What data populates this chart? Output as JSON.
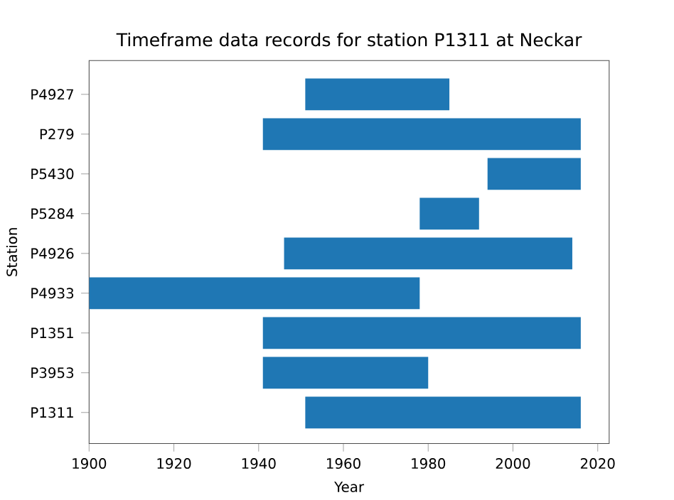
{
  "chart_data": {
    "type": "bar",
    "orientation": "horizontal",
    "title": "Timeframe data records for station P1311 at Neckar",
    "xlabel": "Year",
    "ylabel": "Station",
    "categories": [
      "P4927",
      "P279",
      "P5430",
      "P5284",
      "P4926",
      "P4933",
      "P1351",
      "P3953",
      "P1311"
    ],
    "base": [
      1951,
      1941,
      1994,
      1978,
      1946,
      1900,
      1941,
      1941,
      1951
    ],
    "values": [
      34,
      75,
      22,
      14,
      68,
      78,
      75,
      39,
      65
    ],
    "color": "#1f77b4",
    "xlim": [
      1900,
      2022.7
    ],
    "xticks": [
      1900,
      1920,
      1940,
      1960,
      1980,
      2000,
      2020
    ]
  }
}
